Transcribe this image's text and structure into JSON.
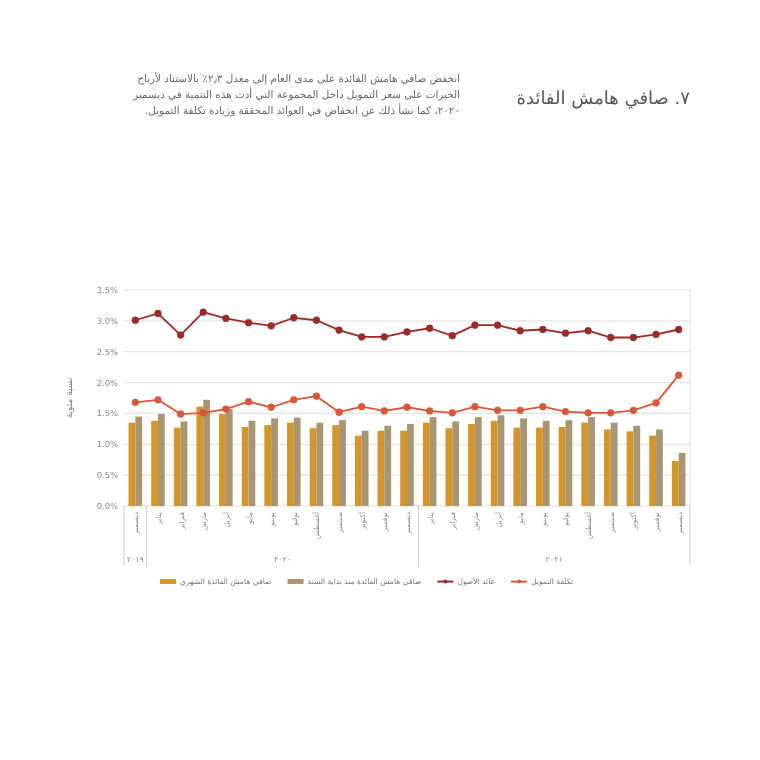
{
  "chart_data": {
    "type": "bar",
    "title": "٧. صافي هامش الفائدة",
    "annotations": [
      "انخفض صافي هامش الفائدة على مدى العام إلى معدل ٢٫٣٪ بالاستناد لأرباح الخبرات على سعر التمويل داخل المجموعة التي أدت هذه التنمية في ديسمبر ٢٠٢٠، كما نشأ ذلك عن انخفاض في العوائد المحققة وزيادة تكلفة التمويل.",
      "٢٠١٩",
      "٢٠٢٠",
      "٢٠٢١"
    ],
    "ylabel": "نسبة مئوية",
    "categories": [
      "ديسمبر",
      "يناير",
      "فبراير",
      "مارس",
      "أبريل",
      "مايو",
      "يونيو",
      "يوليو",
      "أغسطس",
      "سبتمبر",
      "أكتوبر",
      "نوفمبر",
      "ديسمبر",
      "يناير",
      "فبراير",
      "مارس",
      "أبريل",
      "مايو",
      "يونيو",
      "يوليو",
      "أغسطس",
      "سبتمبر",
      "أكتوبر",
      "نوفمبر",
      "ديسمبر"
    ],
    "series": [
      {
        "name": "صافي هامش الفائدة الشهري",
        "color": "#d4952a",
        "values": [
          1.35,
          1.38,
          1.27,
          1.61,
          1.49,
          1.28,
          1.31,
          1.35,
          1.26,
          1.31,
          1.14,
          1.22,
          1.22,
          1.35,
          1.26,
          1.33,
          1.38,
          1.27,
          1.27,
          1.28,
          1.35,
          1.24,
          1.21,
          1.14,
          0.73
        ]
      },
      {
        "name": "صافي هامش الفائدة منذ بداية السنة",
        "color": "#a89572",
        "values": [
          1.45,
          1.49,
          1.37,
          1.72,
          1.57,
          1.38,
          1.42,
          1.43,
          1.35,
          1.39,
          1.22,
          1.3,
          1.33,
          1.44,
          1.37,
          1.44,
          1.47,
          1.42,
          1.38,
          1.39,
          1.44,
          1.35,
          1.3,
          1.24,
          0.86
        ]
      },
      {
        "name": "عائد الأصول",
        "type": "line",
        "color": "#9b2a2a",
        "values": [
          3.01,
          3.12,
          2.77,
          3.14,
          3.04,
          2.97,
          2.92,
          3.05,
          3.01,
          2.85,
          2.74,
          2.74,
          2.82,
          2.88,
          2.76,
          2.93,
          2.93,
          2.84,
          2.86,
          2.8,
          2.84,
          2.73,
          2.73,
          2.78,
          2.86
        ]
      },
      {
        "name": "تكلفة التمويل",
        "type": "line",
        "color": "#d8583a",
        "values": [
          1.68,
          1.72,
          1.49,
          1.51,
          1.57,
          1.69,
          1.6,
          1.72,
          1.78,
          1.52,
          1.61,
          1.54,
          1.6,
          1.54,
          1.51,
          1.61,
          1.55,
          1.55,
          1.61,
          1.53,
          1.51,
          1.51,
          1.55,
          1.67,
          2.12
        ]
      }
    ],
    "ylim": [
      0,
      3.5
    ],
    "yticks": [
      {
        "value": 0,
        "label": "0.0%"
      },
      {
        "value": 0.5,
        "label": "0.5%"
      },
      {
        "value": 1,
        "label": "1.0%"
      },
      {
        "value": 1.5,
        "label": "1.5%"
      },
      {
        "value": 2,
        "label": "2.0%"
      },
      {
        "value": 2.5,
        "label": "2.5%"
      },
      {
        "value": 3,
        "label": "3.0%"
      },
      {
        "value": 3.5,
        "label": "3.5%"
      }
    ],
    "grid": "y",
    "legend": "bottom",
    "marker": "circle",
    "line_style": "solid"
  }
}
